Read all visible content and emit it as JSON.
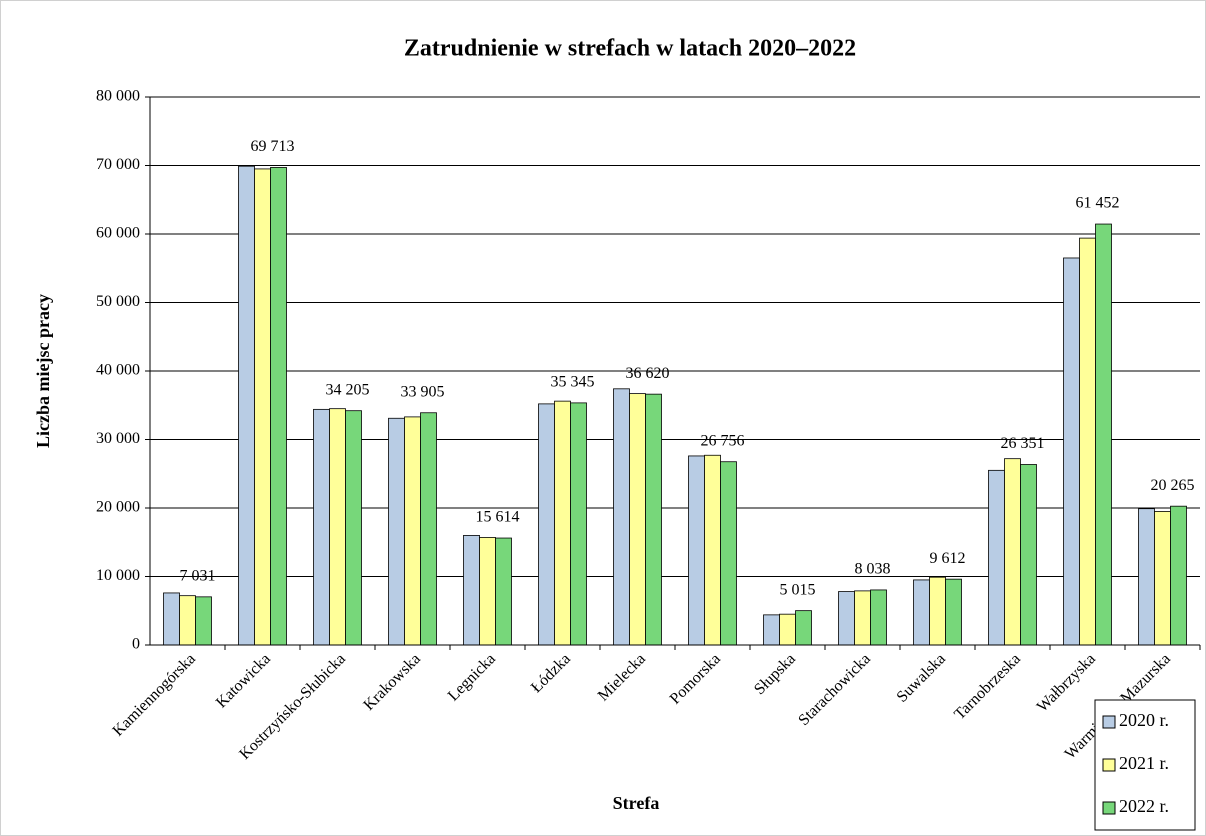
{
  "chart_data": {
    "type": "bar",
    "title": "Zatrudnienie w strefach w latach 2020–2022",
    "x_label": "Strefa",
    "y_label": "Liczba miejsc pracy",
    "categories": [
      "Kamiennogórska",
      "Katowicka",
      "Kostrzyńsko-Słubicka",
      "Krakowska",
      "Legnicka",
      "Łódzka",
      "Mielecka",
      "Pomorska",
      "Słupska",
      "Starachowicka",
      "Suwalska",
      "Tarnobrzeska",
      "Wałbrzyska",
      "Warmińsko-Mazurska"
    ],
    "series": [
      {
        "name": "2020 r.",
        "color": "#b8cce4",
        "values": [
          7600,
          69900,
          34400,
          33100,
          16000,
          35200,
          37400,
          27600,
          4400,
          7800,
          9500,
          25500,
          56500,
          19900
        ]
      },
      {
        "name": "2021 r.",
        "color": "#ffff99",
        "values": [
          7200,
          69500,
          34500,
          33300,
          15700,
          35600,
          36700,
          27700,
          4500,
          7900,
          9900,
          27200,
          59400,
          19500
        ]
      },
      {
        "name": "2022 r.",
        "color": "#77d77a",
        "values": [
          7031,
          69713,
          34205,
          33905,
          15614,
          35345,
          36620,
          26756,
          5015,
          8038,
          9612,
          26351,
          61452,
          20265
        ],
        "value_labels": [
          "7 031",
          "69 713",
          "34 205",
          "33 905",
          "15 614",
          "35 345",
          "36 620",
          "26 756",
          "5 015",
          "8 038",
          "9 612",
          "26 351",
          "61 452",
          "20 265"
        ]
      }
    ],
    "ylim": [
      0,
      80000
    ],
    "yticks": [
      0,
      {
        "value": 10000,
        "label": "10 000"
      },
      {
        "value": 20000,
        "label": "20 000"
      },
      {
        "value": 30000,
        "label": "30 000"
      },
      {
        "value": 40000,
        "label": "40 000"
      },
      {
        "value": 50000,
        "label": "50 000"
      },
      {
        "value": 60000,
        "label": "60 000"
      },
      {
        "value": 70000,
        "label": "70 000"
      },
      {
        "value": 80000,
        "label": "80 000"
      }
    ],
    "grid": true,
    "legend": "lower right"
  }
}
